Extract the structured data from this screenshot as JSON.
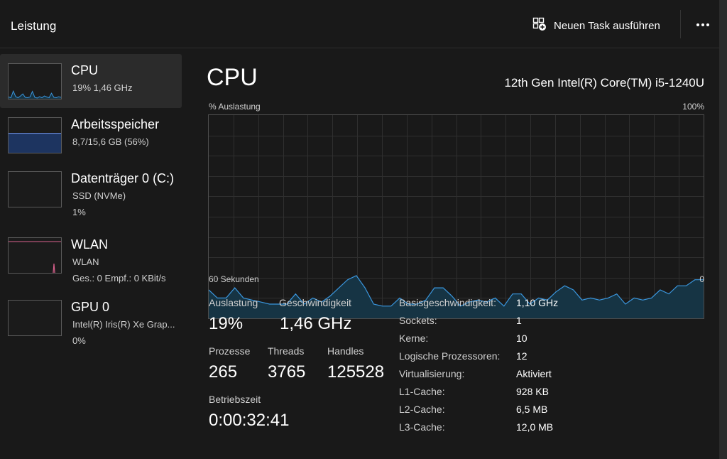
{
  "header": {
    "title": "Leistung",
    "run_task_label": "Neuen Task ausführen",
    "more_icon": "more-horizontal-icon"
  },
  "sidebar": {
    "items": [
      {
        "name": "CPU",
        "line1": "19%  1,46 GHz",
        "line2": "",
        "color": "#3a96dd",
        "selected": true,
        "usage": [
          0.05,
          0.03,
          0.22,
          0.06,
          0.03,
          0.08,
          0.14,
          0.04,
          0.03,
          0.05,
          0.21,
          0.04,
          0.02,
          0.06,
          0.03,
          0.08,
          0.05,
          0.03,
          0.16,
          0.04,
          0.03,
          0.06,
          0.04
        ]
      },
      {
        "name": "Arbeitsspeicher",
        "line1": "8,7/15,6 GB (56%)",
        "line2": "",
        "color": "#6a8ad8",
        "selected": false,
        "usage": 0.56
      },
      {
        "name": "Datenträger 0 (C:)",
        "line1": "SSD (NVMe)",
        "line2": "1%",
        "color": "#6cc24a",
        "selected": false,
        "usage": 0.01
      },
      {
        "name": "WLAN",
        "line1": "WLAN",
        "line2": "Ges.: 0  Empf.: 0 KBit/s",
        "color": "#d8608c",
        "selected": false
      },
      {
        "name": "GPU 0",
        "line1": "Intel(R) Iris(R) Xe Grap...",
        "line2": "0%",
        "color": "#3a96dd",
        "selected": false,
        "usage": 0
      }
    ]
  },
  "main": {
    "title": "CPU",
    "model": "12th Gen Intel(R) Core(TM) i5-1240U",
    "graph_label_left": "% Auslastung",
    "graph_label_right": "100%",
    "time_left": "60 Sekunden",
    "time_right": "0",
    "stats": {
      "auslastung_label": "Auslastung",
      "auslastung_value": "19%",
      "geschwindigkeit_label": "Geschwindigkeit",
      "geschwindigkeit_value": "1,46 GHz",
      "prozesse_label": "Prozesse",
      "prozesse_value": "265",
      "threads_label": "Threads",
      "threads_value": "3765",
      "handles_label": "Handles",
      "handles_value": "125528",
      "betriebszeit_label": "Betriebszeit",
      "betriebszeit_value": "0:00:32:41"
    },
    "details": [
      {
        "key": "Basisgeschwindigkeit:",
        "value": "1,10 GHz"
      },
      {
        "key": "Sockets:",
        "value": "1"
      },
      {
        "key": "Kerne:",
        "value": "10"
      },
      {
        "key": "Logische Prozessoren:",
        "value": "12"
      },
      {
        "key": "Virtualisierung:",
        "value": "Aktiviert"
      },
      {
        "key": "L1-Cache:",
        "value": "928 KB"
      },
      {
        "key": "L2-Cache:",
        "value": "6,5 MB"
      },
      {
        "key": "L3-Cache:",
        "value": "12,0 MB"
      }
    ],
    "graph": {
      "line_color": "#3a96dd",
      "fill_color": "#163444",
      "grid_color": "#2f2f2f",
      "usage": [
        0.14,
        0.1,
        0.1,
        0.15,
        0.1,
        0.09,
        0.08,
        0.07,
        0.07,
        0.07,
        0.12,
        0.07,
        0.1,
        0.08,
        0.11,
        0.15,
        0.19,
        0.21,
        0.15,
        0.07,
        0.06,
        0.06,
        0.1,
        0.07,
        0.07,
        0.09,
        0.15,
        0.15,
        0.11,
        0.06,
        0.08,
        0.09,
        0.08,
        0.1,
        0.06,
        0.12,
        0.12,
        0.07,
        0.1,
        0.09,
        0.13,
        0.16,
        0.14,
        0.09,
        0.1,
        0.09,
        0.1,
        0.12,
        0.07,
        0.1,
        0.09,
        0.1,
        0.14,
        0.12,
        0.16,
        0.16,
        0.19,
        0.19
      ]
    }
  }
}
